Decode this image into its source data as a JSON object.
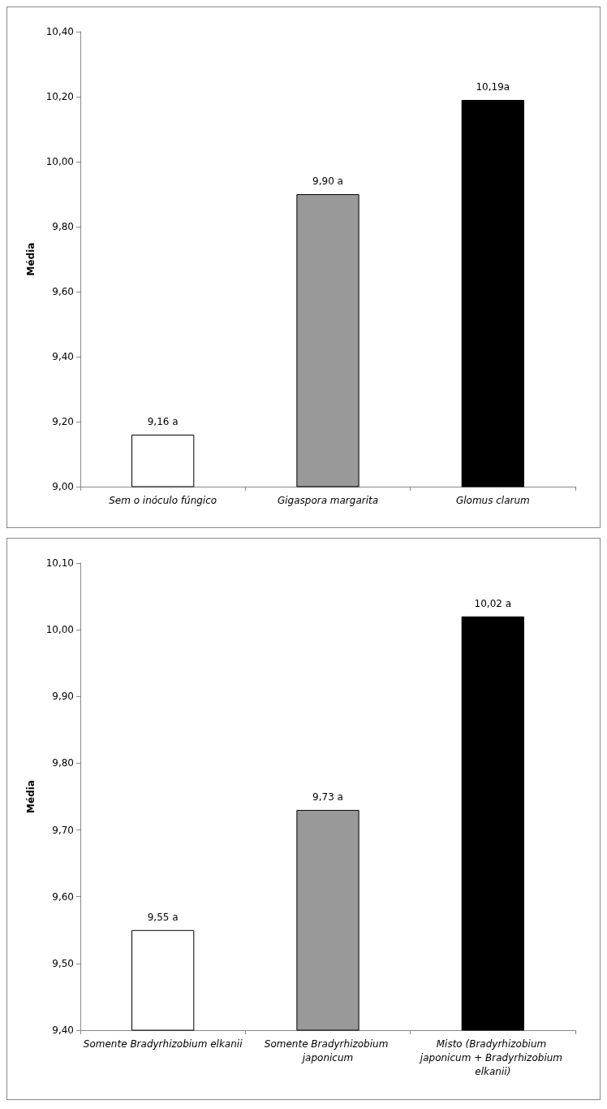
{
  "chart_data": [
    {
      "type": "bar",
      "ylabel": "Média",
      "categories": [
        "Sem o inóculo fúngico",
        "Gigaspora margarita",
        "Glomus clarum"
      ],
      "values": [
        9.16,
        9.9,
        10.19
      ],
      "colors": [
        "#ffffff",
        "#999999",
        "#000000"
      ],
      "value_labels": [
        "9,16 a",
        "9,90 a",
        "10,19a"
      ],
      "ylim": [
        9.0,
        10.4
      ],
      "yticks": [
        {
          "value": 9.0,
          "label": "9,00"
        },
        {
          "value": 9.2,
          "label": "9,20"
        },
        {
          "value": 9.4,
          "label": "9,40"
        },
        {
          "value": 9.6,
          "label": "9,60"
        },
        {
          "value": 9.8,
          "label": "9,80"
        },
        {
          "value": 10.0,
          "label": "10,00"
        },
        {
          "value": 10.2,
          "label": "10,20"
        },
        {
          "value": 10.4,
          "label": "10,40"
        }
      ],
      "grid": false
    },
    {
      "type": "bar",
      "ylabel": "Média",
      "categories": [
        "Somente Bradyrhizobium elkanii",
        "Somente Bradyrhizobium japonicum",
        "Misto (Bradyrhizobium japonicum + Bradyrhizobium elkanii)"
      ],
      "values": [
        9.55,
        9.73,
        10.02
      ],
      "colors": [
        "#ffffff",
        "#999999",
        "#000000"
      ],
      "value_labels": [
        "9,55 a",
        "9,73 a",
        "10,02 a"
      ],
      "ylim": [
        9.4,
        10.1
      ],
      "yticks": [
        {
          "value": 9.4,
          "label": "9,40"
        },
        {
          "value": 9.5,
          "label": "9,50"
        },
        {
          "value": 9.6,
          "label": "9,60"
        },
        {
          "value": 9.7,
          "label": "9,70"
        },
        {
          "value": 9.8,
          "label": "9,80"
        },
        {
          "value": 9.9,
          "label": "9,90"
        },
        {
          "value": 10.0,
          "label": "10,00"
        },
        {
          "value": 10.1,
          "label": "10,10"
        }
      ],
      "grid": false
    }
  ]
}
